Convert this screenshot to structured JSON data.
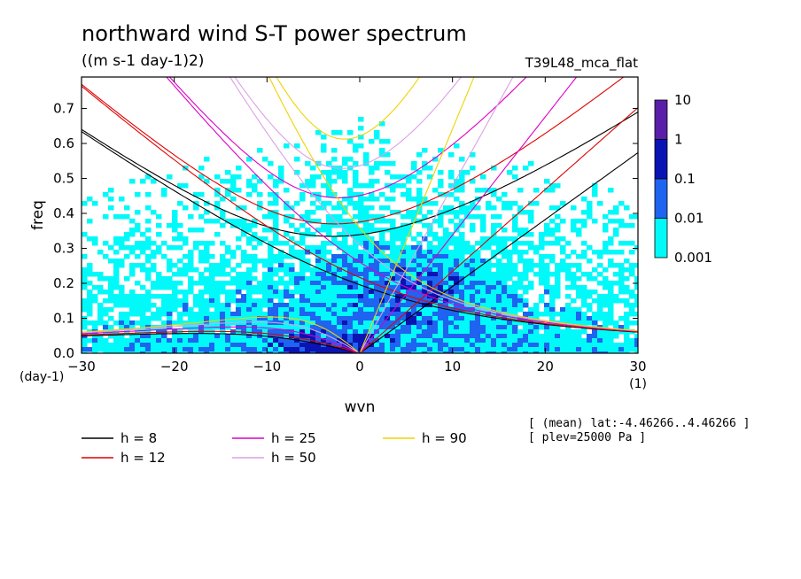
{
  "chart_data": {
    "type": "heatmap",
    "title": "northward wind S-T power spectrum",
    "subtitle": "((m s-1 day-1)2)",
    "experiment": "T39L48_mca_flat",
    "xlabel": "wvn",
    "ylabel": "freq",
    "xunit": "(1)",
    "yunit": "(day-1)",
    "xlim": [
      -30,
      30
    ],
    "ylim": [
      0,
      0.79
    ],
    "xticks": [
      -30,
      -20,
      -10,
      0,
      10,
      20,
      30
    ],
    "yticks": [
      0.0,
      0.1,
      0.2,
      0.3,
      0.4,
      0.5,
      0.6,
      0.7
    ],
    "colorbar": {
      "levels": [
        "10",
        "1",
        "0.1",
        "0.01",
        "0.001"
      ],
      "colors": [
        "#5a1fa8",
        "#0a14b4",
        "#1e64f0",
        "#00fafa"
      ]
    },
    "legend": [
      {
        "label": "h =  8",
        "color": "#000000"
      },
      {
        "label": "h = 12",
        "color": "#e00000"
      },
      {
        "label": "h = 25",
        "color": "#dc00c8"
      },
      {
        "label": "h = 50",
        "color": "#dca0e6"
      },
      {
        "label": "h = 90",
        "color": "#f0d200"
      }
    ],
    "dispersion_equivalent_depths_m": [
      8,
      12,
      25,
      50,
      90
    ],
    "info": [
      "[ (mean) lat:-4.46266..4.46266 ]",
      "[ plev=25000 Pa ]"
    ]
  }
}
